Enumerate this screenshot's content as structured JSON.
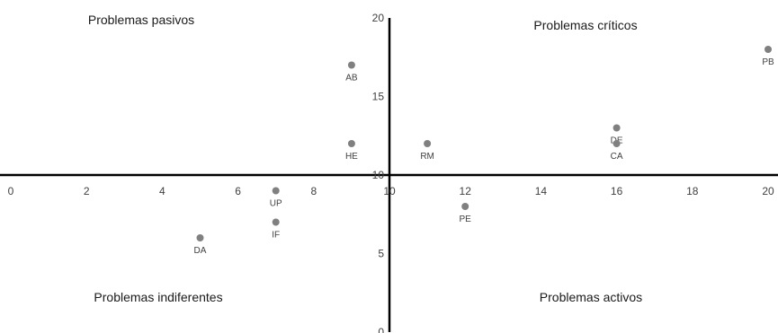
{
  "chart_data": {
    "type": "scatter",
    "title": "",
    "xlabel": "",
    "ylabel": "",
    "xlim": [
      0,
      20
    ],
    "ylim": [
      0,
      20
    ],
    "x_ticks": [
      0,
      2,
      4,
      6,
      8,
      10,
      12,
      14,
      16,
      18,
      20
    ],
    "y_ticks": [
      0,
      5,
      10,
      15,
      20
    ],
    "axis_cross": {
      "x": 10,
      "y": 10
    },
    "grid": false,
    "point_color": "#808080",
    "axis_color": "#000000",
    "quadrants": {
      "top_left": "Problemas pasivos",
      "top_right": "Problemas críticos",
      "bottom_left": "Problemas indiferentes",
      "bottom_right": "Problemas activos"
    },
    "points": [
      {
        "label": "AB",
        "x": 9,
        "y": 17
      },
      {
        "label": "HE",
        "x": 9,
        "y": 12
      },
      {
        "label": "RM",
        "x": 11,
        "y": 12
      },
      {
        "label": "DE",
        "x": 16,
        "y": 13
      },
      {
        "label": "CA",
        "x": 16,
        "y": 12
      },
      {
        "label": "PB",
        "x": 20,
        "y": 18
      },
      {
        "label": "UP",
        "x": 7,
        "y": 9
      },
      {
        "label": "IF",
        "x": 7,
        "y": 7
      },
      {
        "label": "DA",
        "x": 5,
        "y": 6
      },
      {
        "label": "PE",
        "x": 12,
        "y": 8
      }
    ]
  }
}
